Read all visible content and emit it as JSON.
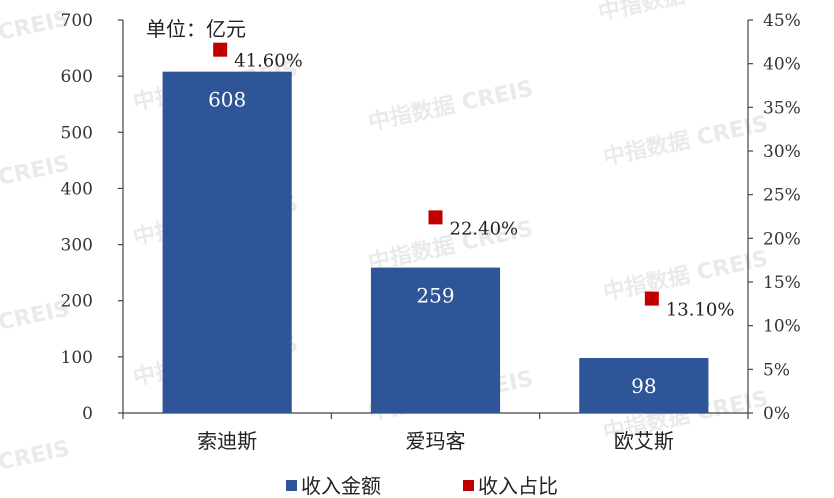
{
  "chart_data": {
    "type": "bar",
    "unit_label": "单位：亿元",
    "categories": [
      "索迪斯",
      "爱玛客",
      "欧艾斯"
    ],
    "series": [
      {
        "name": "收入金额",
        "type": "bar",
        "axis": "left",
        "color": "#2e5597",
        "values": [
          608,
          259,
          98
        ],
        "labels": [
          "608",
          "259",
          "98"
        ]
      },
      {
        "name": "收入占比",
        "type": "scatter",
        "axis": "right",
        "color": "#c00000",
        "values": [
          41.6,
          22.4,
          13.1
        ],
        "labels": [
          "41.60%",
          "22.40%",
          "13.10%"
        ]
      }
    ],
    "y_left": {
      "min": 0,
      "max": 700,
      "ticks": [
        "0",
        "100",
        "200",
        "300",
        "400",
        "500",
        "600",
        "700"
      ]
    },
    "y_right": {
      "min": 0,
      "max": 45,
      "ticks": [
        "0%",
        "5%",
        "10%",
        "15%",
        "20%",
        "25%",
        "30%",
        "35%",
        "40%",
        "45%"
      ]
    },
    "legend": {
      "position": "bottom"
    },
    "grid": false
  },
  "watermark": "中指数据 CREIS"
}
